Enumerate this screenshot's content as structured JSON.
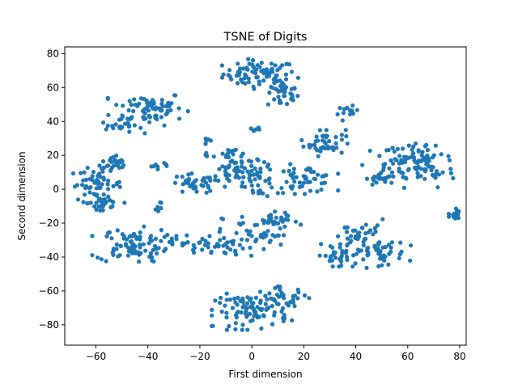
{
  "chart_data": {
    "type": "scatter",
    "title": "TSNE of Digits",
    "xlabel": "First dimension",
    "ylabel": "Second dimension",
    "xlim": [
      -72,
      82.5
    ],
    "ylim": [
      -92,
      84
    ],
    "xticks": [
      -60,
      -40,
      -20,
      0,
      20,
      40,
      60,
      80
    ],
    "yticks": [
      -80,
      -60,
      -40,
      -20,
      0,
      20,
      40,
      60,
      80
    ],
    "xtick_labels": [
      "−60",
      "−40",
      "−20",
      "0",
      "20",
      "40",
      "60",
      "80"
    ],
    "ytick_labels": [
      "−80",
      "−60",
      "−40",
      "−20",
      "0",
      "20",
      "40",
      "60",
      "80"
    ],
    "grid": false,
    "marker_color": "#1f77b4",
    "clusters": [
      {
        "center": [
          3,
          68
        ],
        "spread": [
          7,
          4
        ],
        "count": 80
      },
      {
        "center": [
          12,
          56
        ],
        "spread": [
          3,
          4
        ],
        "count": 35
      },
      {
        "center": [
          -40,
          48
        ],
        "spread": [
          7,
          5
        ],
        "count": 75
      },
      {
        "center": [
          -50,
          37
        ],
        "spread": [
          4,
          2
        ],
        "count": 20
      },
      {
        "center": [
          28,
          28
        ],
        "spread": [
          4,
          4
        ],
        "count": 45
      },
      {
        "center": [
          37,
          45
        ],
        "spread": [
          2,
          2
        ],
        "count": 12
      },
      {
        "center": [
          -60,
          3
        ],
        "spread": [
          5,
          5
        ],
        "count": 55
      },
      {
        "center": [
          -53,
          14
        ],
        "spread": [
          3,
          3
        ],
        "count": 25
      },
      {
        "center": [
          -57,
          -8
        ],
        "spread": [
          3,
          4
        ],
        "count": 25
      },
      {
        "center": [
          -22,
          3
        ],
        "spread": [
          5,
          3
        ],
        "count": 35
      },
      {
        "center": [
          -5,
          10
        ],
        "spread": [
          5,
          5
        ],
        "count": 55
      },
      {
        "center": [
          3,
          5
        ],
        "spread": [
          3,
          5
        ],
        "count": 30
      },
      {
        "center": [
          20,
          6
        ],
        "spread": [
          6,
          4
        ],
        "count": 55
      },
      {
        "center": [
          55,
          14
        ],
        "spread": [
          6,
          6
        ],
        "count": 45
      },
      {
        "center": [
          68,
          12
        ],
        "spread": [
          5,
          6
        ],
        "count": 45
      },
      {
        "center": [
          65,
          22
        ],
        "spread": [
          5,
          4
        ],
        "count": 25
      },
      {
        "center": [
          50,
          6
        ],
        "spread": [
          3,
          2
        ],
        "count": 18
      },
      {
        "center": [
          78,
          -15
        ],
        "spread": [
          1,
          2
        ],
        "count": 18
      },
      {
        "center": [
          -46,
          -33
        ],
        "spread": [
          7,
          5
        ],
        "count": 85
      },
      {
        "center": [
          -15,
          -33
        ],
        "spread": [
          6,
          3
        ],
        "count": 45
      },
      {
        "center": [
          3,
          -26
        ],
        "spread": [
          7,
          6
        ],
        "count": 45
      },
      {
        "center": [
          10,
          -19
        ],
        "spread": [
          4,
          2
        ],
        "count": 25
      },
      {
        "center": [
          42,
          -28
        ],
        "spread": [
          5,
          5
        ],
        "count": 45
      },
      {
        "center": [
          48,
          -38
        ],
        "spread": [
          6,
          4
        ],
        "count": 45
      },
      {
        "center": [
          33,
          -39
        ],
        "spread": [
          4,
          3
        ],
        "count": 25
      },
      {
        "center": [
          0,
          -72
        ],
        "spread": [
          7,
          5
        ],
        "count": 90
      },
      {
        "center": [
          12,
          -64
        ],
        "spread": [
          5,
          3
        ],
        "count": 35
      },
      {
        "center": [
          -8,
          20
        ],
        "spread": [
          3,
          3
        ],
        "count": 14
      },
      {
        "center": [
          -17,
          20
        ],
        "spread": [
          1,
          1
        ],
        "count": 5
      },
      {
        "center": [
          1,
          35
        ],
        "spread": [
          1,
          1
        ],
        "count": 6
      },
      {
        "center": [
          -18,
          29
        ],
        "spread": [
          1,
          1
        ],
        "count": 5
      },
      {
        "center": [
          -36,
          14
        ],
        "spread": [
          2,
          1
        ],
        "count": 8
      },
      {
        "center": [
          -36,
          -10
        ],
        "spread": [
          1,
          2
        ],
        "count": 6
      },
      {
        "center": [
          -33,
          -28
        ],
        "spread": [
          2,
          1
        ],
        "count": 5
      }
    ]
  }
}
